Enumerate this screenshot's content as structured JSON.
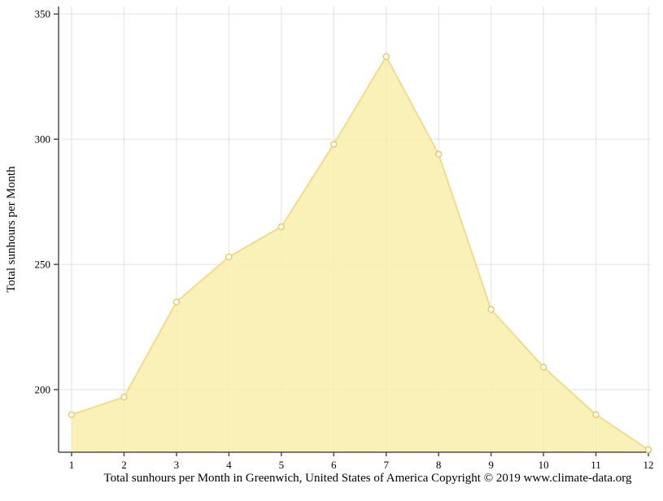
{
  "chart_data": {
    "type": "area",
    "x": [
      1,
      2,
      3,
      4,
      5,
      6,
      7,
      8,
      9,
      10,
      11,
      12
    ],
    "series": [
      {
        "name": "Total sunhours",
        "values": [
          190,
          197,
          235,
          253,
          265,
          298,
          333,
          294,
          232,
          209,
          190,
          176
        ]
      }
    ],
    "title": "",
    "xlabel": "Total sunhours per Month in Greenwich, United States of America Copyright © 2019 www.climate-data.org",
    "ylabel": "Total sunhours per Month",
    "ylim": [
      175,
      353
    ],
    "yticks": [
      200,
      250,
      300,
      350
    ],
    "xticks": [
      "1",
      "2",
      "3",
      "4",
      "5",
      "6",
      "7",
      "8",
      "9",
      "10",
      "11",
      "12"
    ],
    "grid": true,
    "legend": "none",
    "colors": {
      "area_fill": "#F9EEA9",
      "line": "#F0DC8C",
      "marker_fill": "#FFFFFF",
      "marker_stroke": "#E8CC6E",
      "axis": "#4D4D4D",
      "gridline": "#E2E2E2",
      "text": "#000000",
      "background": "#FFFFFF"
    }
  },
  "caption": "Total sunhours per Month in Greenwich, United States of America Copyright © 2019 www.climate-data.org"
}
